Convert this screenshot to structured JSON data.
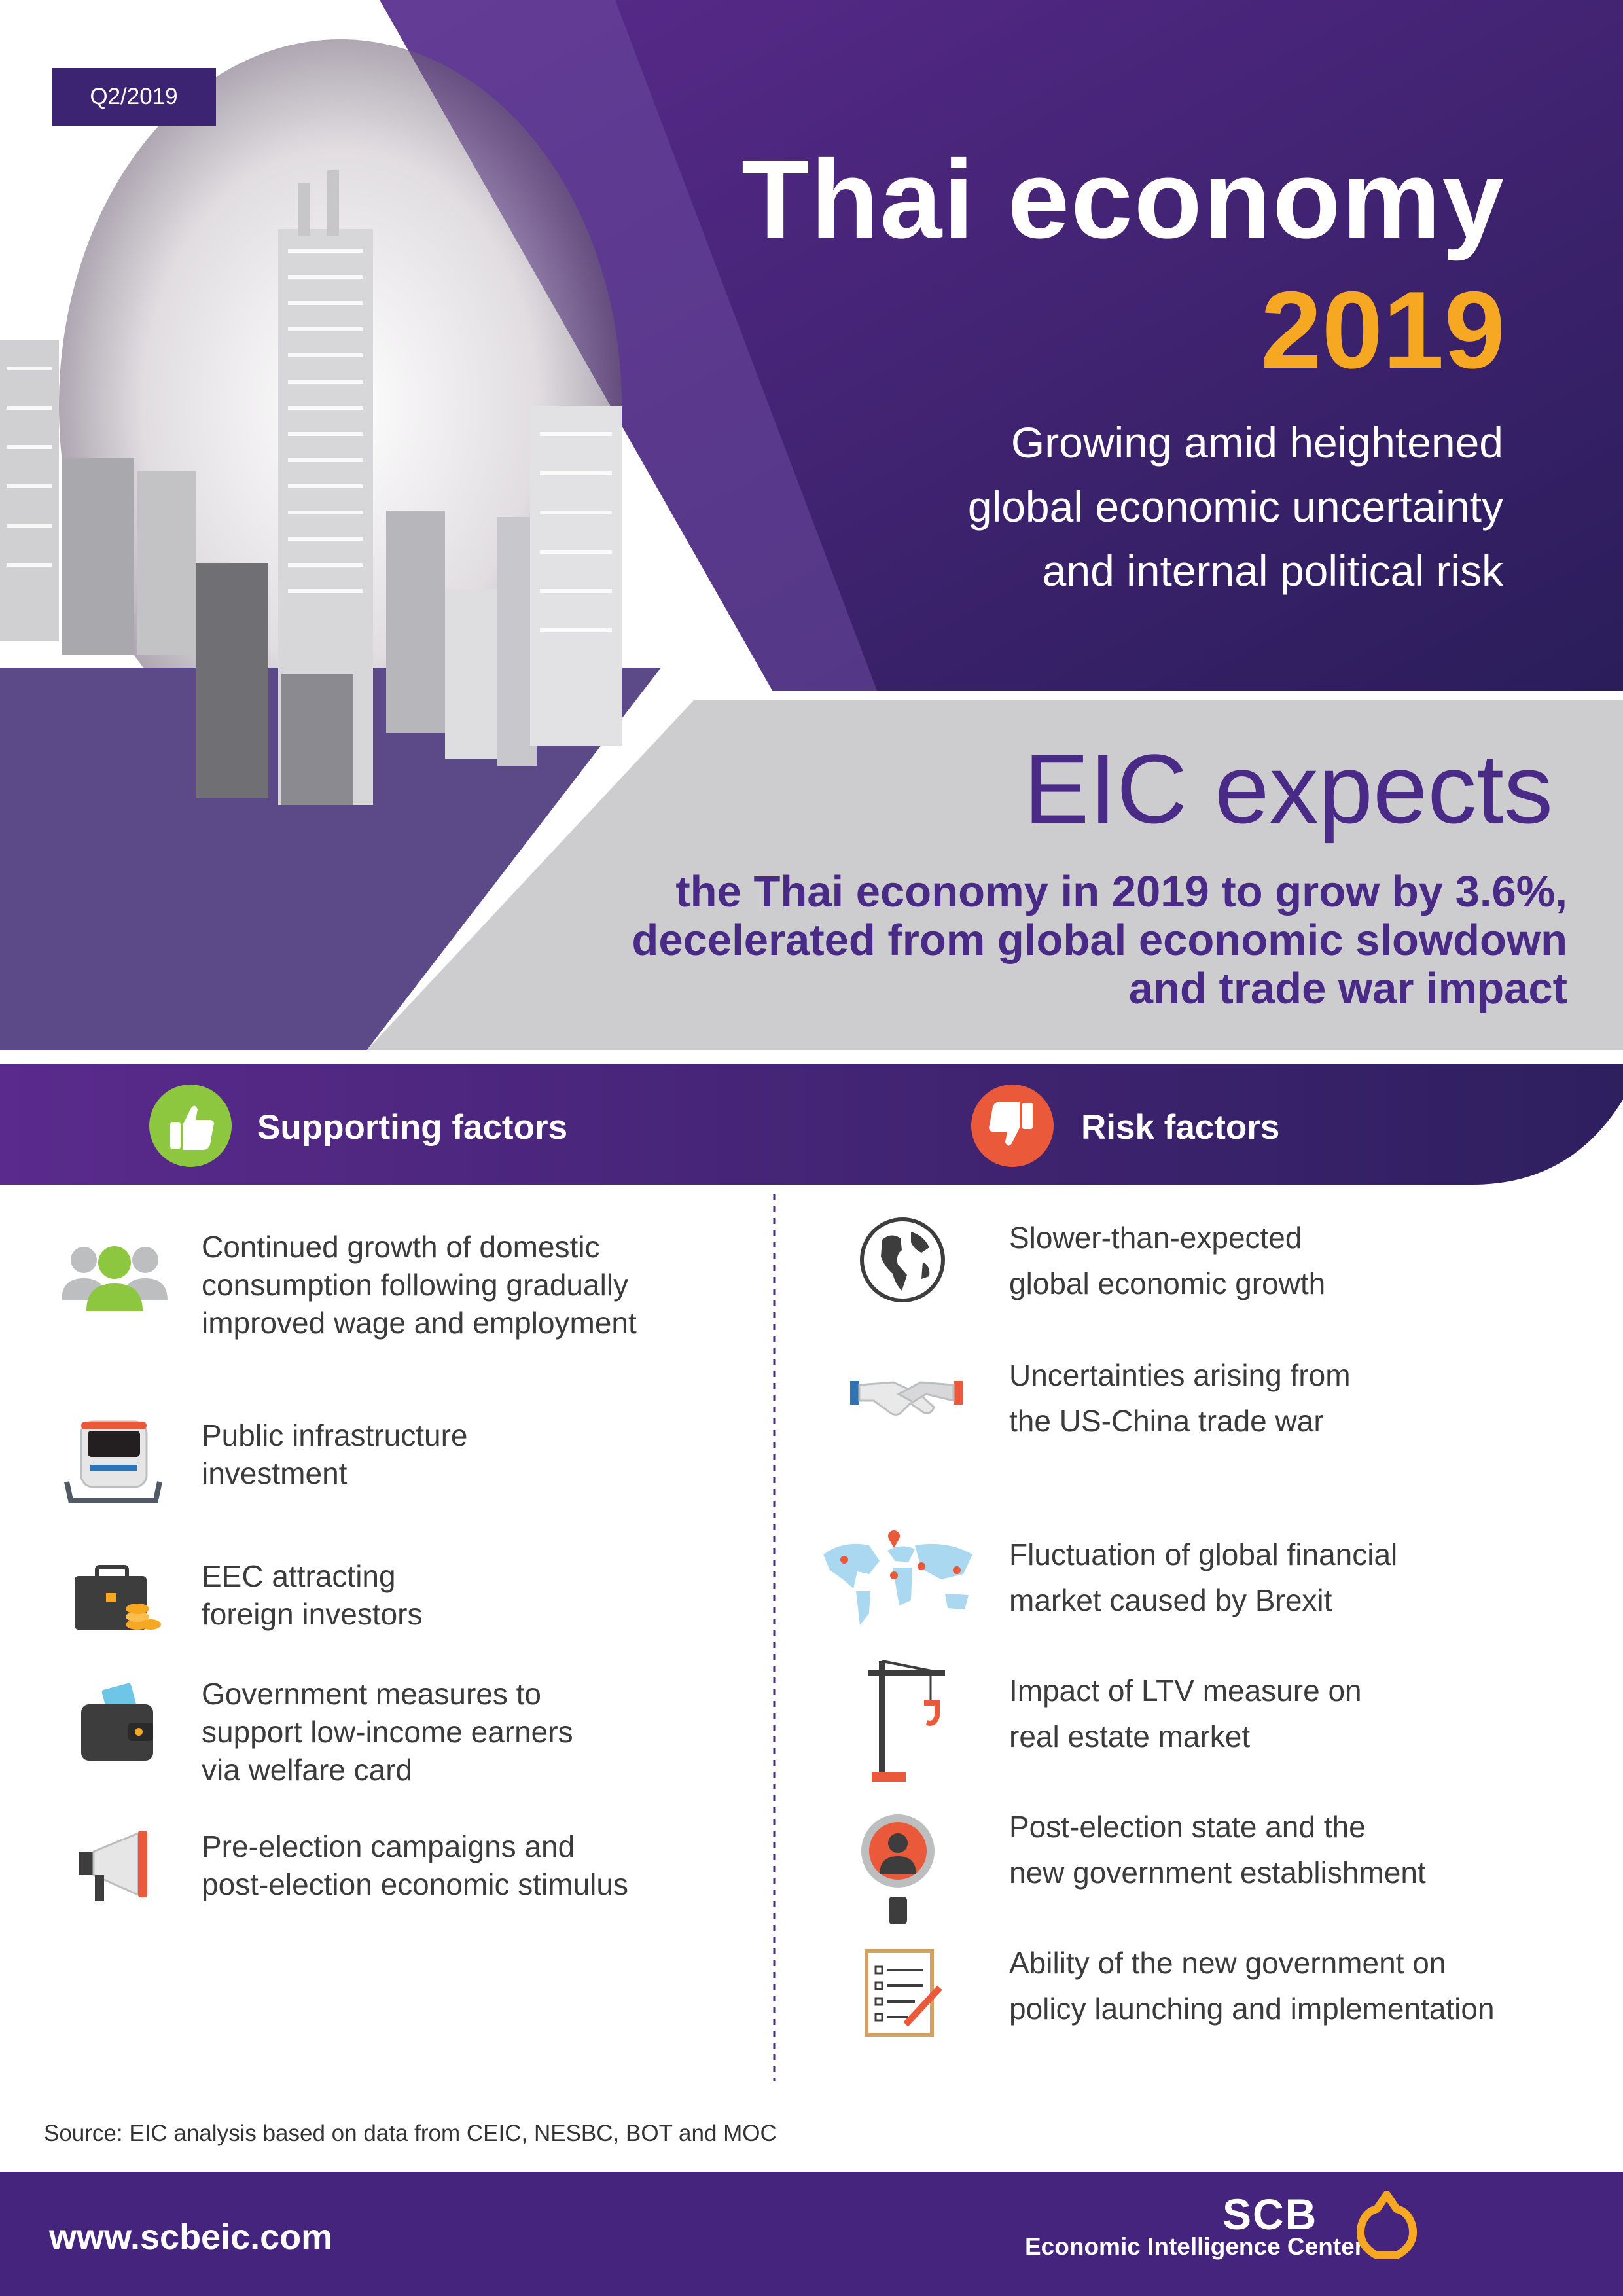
{
  "badge": "Q2/2019",
  "header": {
    "title": "Thai economy",
    "year": "2019",
    "subtitle_lines": [
      "Growing amid heightened",
      "global economic uncertainty",
      "and internal political risk"
    ]
  },
  "eic": {
    "heading": "EIC expects",
    "lines": [
      "the Thai economy in 2019 to grow by 3.6%,",
      "decelerated from global economic slowdown",
      "and trade war impact"
    ]
  },
  "supporting": {
    "heading": "Supporting factors",
    "items": [
      {
        "icon": "people-icon",
        "lines": [
          "Continued growth of domestic",
          "consumption following gradually",
          "improved wage and employment"
        ]
      },
      {
        "icon": "train-icon",
        "lines": [
          "Public infrastructure",
          "investment"
        ]
      },
      {
        "icon": "briefcase-coins-icon",
        "lines": [
          "EEC attracting",
          "foreign investors"
        ]
      },
      {
        "icon": "wallet-icon",
        "lines": [
          "Government measures to",
          "support low-income earners",
          "via welfare card"
        ]
      },
      {
        "icon": "megaphone-icon",
        "lines": [
          "Pre-election campaigns and",
          "post-election economic stimulus"
        ]
      }
    ]
  },
  "risk": {
    "heading": "Risk factors",
    "items": [
      {
        "icon": "globe-icon",
        "lines": [
          "Slower-than-expected",
          "global economic growth"
        ]
      },
      {
        "icon": "handshake-icon",
        "lines": [
          "Uncertainties arising from",
          "the US-China trade war"
        ]
      },
      {
        "icon": "world-map-icon",
        "lines": [
          "Fluctuation of global financial",
          "market caused by Brexit"
        ]
      },
      {
        "icon": "crane-icon",
        "lines": [
          "Impact of LTV measure on",
          "real estate market"
        ]
      },
      {
        "icon": "official-icon",
        "lines": [
          "Post-election state and the",
          "new government establishment"
        ]
      },
      {
        "icon": "checklist-icon",
        "lines": [
          "Ability of the new government on",
          "policy launching and implementation"
        ]
      }
    ]
  },
  "source": "Source: EIC analysis based on data from CEIC, NESBC, BOT and MOC",
  "footer": {
    "url": "www.scbeic.com",
    "brand": "SCB",
    "brand_sub": "Economic Intelligence Center"
  },
  "colors": {
    "purple_dark": "#2f1f5e",
    "purple": "#4a2a87",
    "orange": "#f7a823",
    "green": "#8dc63f",
    "red": "#ea5a3a",
    "grey_panel": "#cdcdcf"
  }
}
